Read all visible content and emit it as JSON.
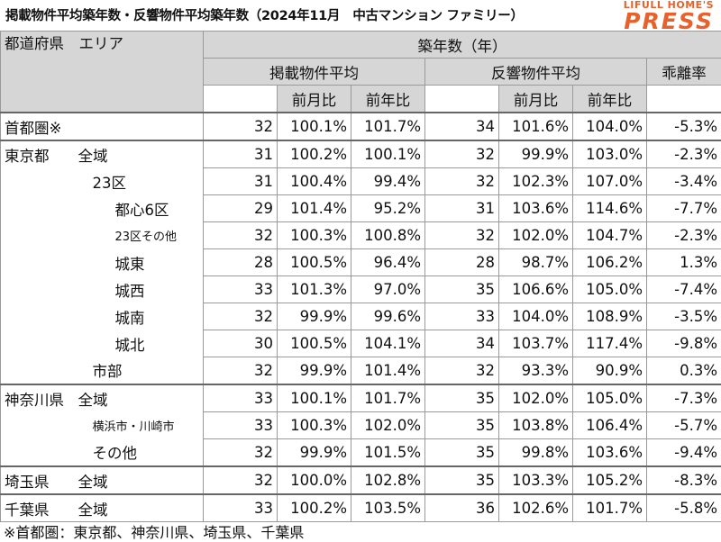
{
  "title": "掲載物件平均築年数・反響物件平均築年数（2024年11月　中古マンション ファミリー）",
  "logo": {
    "top": "LIFULL HOME'S",
    "main": "PRESS"
  },
  "header": {
    "pref_area": "都道府県　エリア",
    "chikunen": "築年数（年）",
    "listing_avg": "掲載物件平均",
    "inquiry_avg": "反響物件平均",
    "gap_rate": "乖離率",
    "mom": "前月比",
    "yoy": "前年比"
  },
  "rows": [
    {
      "pref": "首都圏※",
      "area": "",
      "indent": 0,
      "l": "32",
      "lm": "100.1%",
      "ly": "101.7%",
      "r": "34",
      "rm": "101.6%",
      "ry": "104.0%",
      "gap": "-5.3%"
    },
    {
      "pref": "東京都",
      "area": "全域",
      "indent": 0,
      "l": "31",
      "lm": "100.2%",
      "ly": "100.1%",
      "r": "32",
      "rm": "99.9%",
      "ry": "103.0%",
      "gap": "-2.3%"
    },
    {
      "pref": "",
      "area": "23区",
      "indent": 1,
      "l": "31",
      "lm": "100.4%",
      "ly": "99.4%",
      "r": "32",
      "rm": "102.3%",
      "ry": "107.0%",
      "gap": "-3.4%"
    },
    {
      "pref": "",
      "area": "都心6区",
      "indent": 2,
      "l": "29",
      "lm": "101.4%",
      "ly": "95.2%",
      "r": "31",
      "rm": "103.6%",
      "ry": "114.6%",
      "gap": "-7.7%"
    },
    {
      "pref": "",
      "area": "23区その他",
      "indent": 2,
      "small": true,
      "l": "32",
      "lm": "100.3%",
      "ly": "100.8%",
      "r": "32",
      "rm": "102.0%",
      "ry": "104.7%",
      "gap": "-2.3%"
    },
    {
      "pref": "",
      "area": "城東",
      "indent": 2,
      "l": "28",
      "lm": "100.5%",
      "ly": "96.4%",
      "r": "28",
      "rm": "98.7%",
      "ry": "106.2%",
      "gap": "1.3%"
    },
    {
      "pref": "",
      "area": "城西",
      "indent": 2,
      "l": "33",
      "lm": "101.3%",
      "ly": "97.0%",
      "r": "35",
      "rm": "106.6%",
      "ry": "105.0%",
      "gap": "-7.4%"
    },
    {
      "pref": "",
      "area": "城南",
      "indent": 2,
      "l": "32",
      "lm": "99.9%",
      "ly": "99.6%",
      "r": "33",
      "rm": "104.0%",
      "ry": "108.9%",
      "gap": "-3.5%"
    },
    {
      "pref": "",
      "area": "城北",
      "indent": 2,
      "l": "30",
      "lm": "100.5%",
      "ly": "104.1%",
      "r": "34",
      "rm": "103.7%",
      "ry": "117.4%",
      "gap": "-9.8%"
    },
    {
      "pref": "",
      "area": "市部",
      "indent": 1,
      "l": "32",
      "lm": "99.9%",
      "ly": "101.4%",
      "r": "32",
      "rm": "93.3%",
      "ry": "90.9%",
      "gap": "0.3%"
    },
    {
      "pref": "神奈川県",
      "area": "全域",
      "indent": 0,
      "l": "33",
      "lm": "100.1%",
      "ly": "101.7%",
      "r": "35",
      "rm": "102.0%",
      "ry": "105.0%",
      "gap": "-7.3%"
    },
    {
      "pref": "",
      "area": "横浜市・川崎市",
      "indent": 1,
      "small": true,
      "l": "33",
      "lm": "100.3%",
      "ly": "102.0%",
      "r": "35",
      "rm": "103.8%",
      "ry": "106.4%",
      "gap": "-5.7%"
    },
    {
      "pref": "",
      "area": "その他",
      "indent": 1,
      "l": "32",
      "lm": "99.9%",
      "ly": "101.5%",
      "r": "35",
      "rm": "99.8%",
      "ry": "103.6%",
      "gap": "-9.4%"
    },
    {
      "pref": "埼玉県",
      "area": "全域",
      "indent": 0,
      "l": "32",
      "lm": "100.0%",
      "ly": "102.8%",
      "r": "35",
      "rm": "103.3%",
      "ry": "105.2%",
      "gap": "-8.3%"
    },
    {
      "pref": "千葉県",
      "area": "全域",
      "indent": 0,
      "l": "33",
      "lm": "100.2%",
      "ly": "103.5%",
      "r": "36",
      "rm": "102.6%",
      "ry": "101.7%",
      "gap": "-5.8%"
    }
  ],
  "footnote": "※首都圏：東京都、神奈川県、埼玉県、千葉県"
}
